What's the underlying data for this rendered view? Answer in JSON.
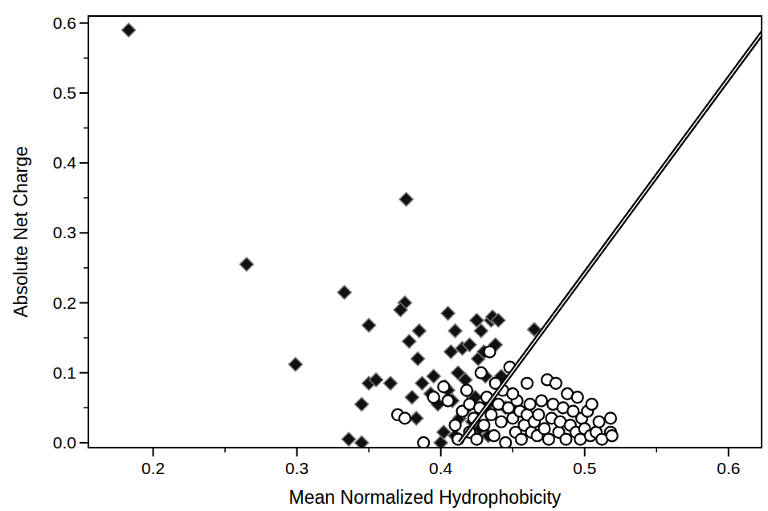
{
  "chart_data": {
    "type": "scatter",
    "x_label": "Mean Normalized Hydrophobicity",
    "y_label": "Absolute Net Charge",
    "xlim": [
      0.155,
      0.623
    ],
    "ylim": [
      -0.007,
      0.61
    ],
    "xticks": [
      0.2,
      0.3,
      0.4,
      0.5,
      0.6
    ],
    "yticks": [
      {
        "value": 0,
        "label": "0.0"
      },
      0.1,
      0.2,
      0.3,
      0.4,
      0.5,
      0.6
    ],
    "grid": false,
    "series": [
      {
        "type": "scatter",
        "marker": "diamond",
        "color": "#111111",
        "x": [
          0.183,
          0.265,
          0.299,
          0.333,
          0.35,
          0.336,
          0.345,
          0.345,
          0.35,
          0.355,
          0.365,
          0.375,
          0.372,
          0.376,
          0.378,
          0.38,
          0.383,
          0.384,
          0.385,
          0.387,
          0.393,
          0.395,
          0.398,
          0.4,
          0.402,
          0.403,
          0.405,
          0.405,
          0.407,
          0.408,
          0.41,
          0.412,
          0.413,
          0.415,
          0.417,
          0.42,
          0.42,
          0.422,
          0.424,
          0.425,
          0.426,
          0.428,
          0.43,
          0.431,
          0.433,
          0.435,
          0.436,
          0.438,
          0.44,
          0.442,
          0.445,
          0.465,
          0.416,
          0.41,
          0.433,
          0.427
        ],
        "values": [
          0.59,
          0.255,
          0.112,
          0.215,
          0.168,
          0.005,
          0.055,
          0.0,
          0.085,
          0.09,
          0.085,
          0.2,
          0.19,
          0.348,
          0.145,
          0.065,
          0.035,
          0.12,
          0.16,
          0.085,
          0.07,
          0.095,
          0.055,
          0.0,
          0.015,
          0.08,
          0.075,
          0.185,
          0.13,
          0.06,
          0.16,
          0.1,
          0.035,
          0.135,
          0.09,
          0.14,
          0.07,
          0.03,
          0.065,
          0.175,
          0.12,
          0.16,
          0.13,
          0.095,
          0.055,
          0.175,
          0.18,
          0.14,
          0.175,
          0.095,
          0.05,
          0.162,
          0.045,
          0.01,
          0.01,
          0.02
        ]
      },
      {
        "type": "scatter",
        "marker": "circle",
        "color": "#000000",
        "x": [
          0.37,
          0.375,
          0.388,
          0.395,
          0.402,
          0.405,
          0.41,
          0.412,
          0.415,
          0.418,
          0.42,
          0.42,
          0.423,
          0.425,
          0.427,
          0.43,
          0.432,
          0.434,
          0.435,
          0.437,
          0.44,
          0.442,
          0.443,
          0.445,
          0.447,
          0.448,
          0.45,
          0.452,
          0.453,
          0.455,
          0.456,
          0.458,
          0.46,
          0.462,
          0.463,
          0.465,
          0.467,
          0.468,
          0.47,
          0.472,
          0.474,
          0.475,
          0.477,
          0.478,
          0.48,
          0.482,
          0.483,
          0.485,
          0.487,
          0.488,
          0.49,
          0.492,
          0.494,
          0.495,
          0.497,
          0.498,
          0.5,
          0.502,
          0.504,
          0.505,
          0.508,
          0.51,
          0.512,
          0.518,
          0.518,
          0.519,
          0.428,
          0.46,
          0.438,
          0.45
        ],
        "values": [
          0.04,
          0.035,
          0.0,
          0.065,
          0.08,
          0.06,
          0.025,
          0.005,
          0.045,
          0.075,
          0.015,
          0.055,
          0.035,
          0.005,
          0.05,
          0.025,
          0.065,
          0.13,
          0.04,
          0.01,
          0.055,
          0.03,
          0.075,
          0.0,
          0.05,
          0.108,
          0.035,
          0.015,
          0.06,
          0.045,
          0.005,
          0.025,
          0.04,
          0.055,
          0.015,
          0.03,
          0.01,
          0.04,
          0.06,
          0.02,
          0.09,
          0.005,
          0.035,
          0.055,
          0.085,
          0.015,
          0.03,
          0.05,
          0.005,
          0.07,
          0.025,
          0.045,
          0.015,
          0.065,
          0.005,
          0.035,
          0.02,
          0.045,
          0.01,
          0.055,
          0.015,
          0.03,
          0.005,
          0.035,
          0.015,
          0.01,
          0.1,
          0.085,
          0.085,
          0.07
        ]
      },
      {
        "type": "line",
        "line_style": "solid",
        "color": "#000000",
        "x": [
          0.4133,
          0.6285
        ],
        "values": [
          0,
          0.6
        ]
      }
    ]
  }
}
